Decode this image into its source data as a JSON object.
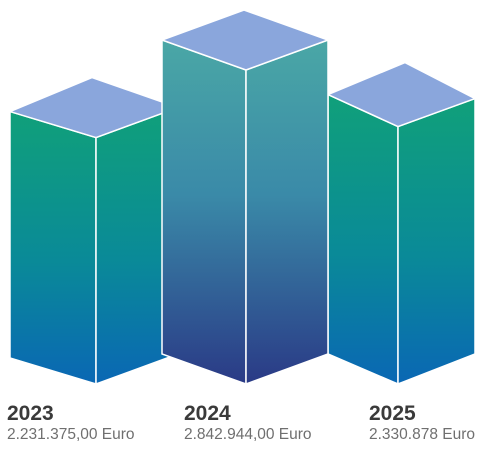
{
  "chart_data": {
    "type": "bar",
    "style": "3d-columns",
    "categories": [
      "2023",
      "2024",
      "2025"
    ],
    "value_labels": [
      "2.231.375,00 Euro",
      "2.842.944,00 Euro",
      "2.330.878 Euro"
    ],
    "values": [
      2231375.0,
      2842944.0,
      2330878
    ],
    "unit": "Euro",
    "colors": {
      "top_face": "#8aa6dc",
      "gradient_green": "#10a07a",
      "gradient_blue": "#0a67b4",
      "gradient_teal": "#4aa7a6",
      "gradient_navy": "#2a3a86",
      "edge": "#ffffff"
    }
  }
}
